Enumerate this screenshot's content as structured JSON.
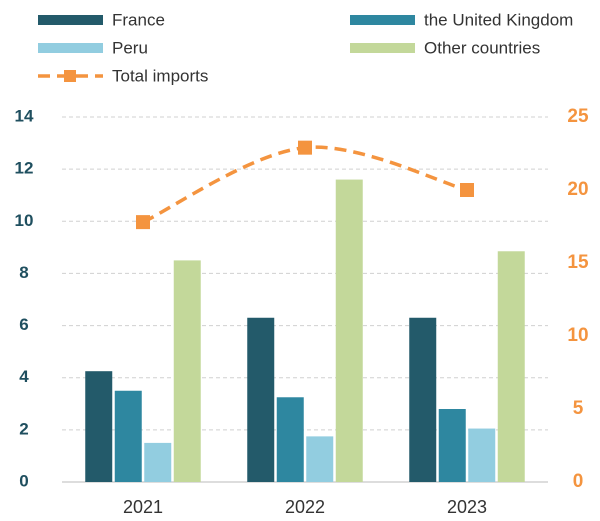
{
  "chart_data": {
    "type": "bar",
    "categories": [
      "2021",
      "2022",
      "2023"
    ],
    "series": [
      {
        "name": "France",
        "color": "#235a6a",
        "values": [
          4.25,
          6.3,
          6.3
        ]
      },
      {
        "name": "the United Kingdom",
        "color": "#2e87a0",
        "values": [
          3.5,
          3.25,
          2.8
        ]
      },
      {
        "name": "Peru",
        "color": "#92cde0",
        "values": [
          1.5,
          1.75,
          2.05
        ]
      },
      {
        "name": "Other countries",
        "color": "#c3d89a",
        "values": [
          8.5,
          11.6,
          8.85
        ]
      },
      {
        "name": "Total imports",
        "color": "#f4943f",
        "type": "line",
        "axis": "y2",
        "values": [
          17.8,
          22.9,
          20.0
        ]
      }
    ],
    "ylim": [
      0,
      14
    ],
    "yticks": [
      0,
      2,
      4,
      6,
      8,
      10,
      12,
      14
    ],
    "y2lim": [
      0,
      25
    ],
    "y2ticks": [
      0,
      5,
      10,
      15,
      20,
      25
    ],
    "grid": true,
    "legend": "top"
  }
}
